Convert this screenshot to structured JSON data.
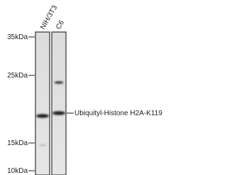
{
  "lanes": [
    "NIH/3T3",
    "C6"
  ],
  "markers": [
    "35kDa",
    "25kDa",
    "15kDa",
    "10kDa"
  ],
  "band_label": "Ubiquityl-Histone H2A-K119"
}
